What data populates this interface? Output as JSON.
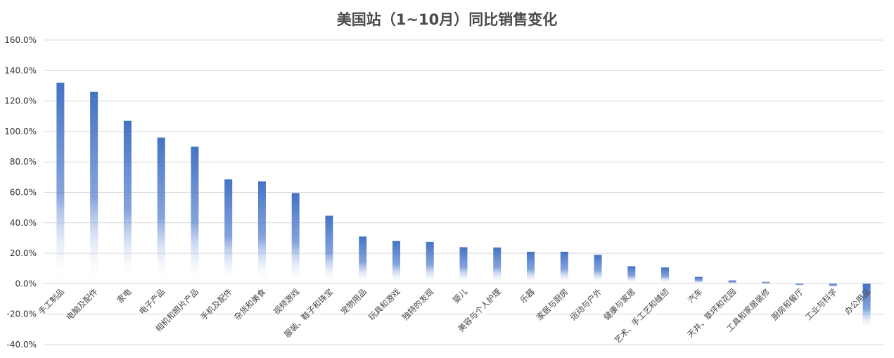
{
  "chart_data": {
    "type": "bar",
    "title": "美国站（1~10月）同比销售变化",
    "xlabel": "",
    "ylabel": "",
    "ylim": [
      -0.4,
      1.6
    ],
    "yticks": [
      "-40.0%",
      "-20.0%",
      "0.0%",
      "20.0%",
      "40.0%",
      "60.0%",
      "80.0%",
      "100.0%",
      "120.0%",
      "140.0%",
      "160.0%"
    ],
    "ytick_values": [
      -0.4,
      -0.2,
      0,
      0.2,
      0.4,
      0.6,
      0.8,
      1.0,
      1.2,
      1.4,
      1.6
    ],
    "grid": true,
    "legend": "none",
    "bar_color": "#4472c4",
    "categories": [
      "手工制品",
      "电脑及配件",
      "家电",
      "电子产品",
      "相机和照片产品",
      "手机及配件",
      "杂货和美食",
      "视频游戏",
      "服装、鞋子和珠宝",
      "宠物用品",
      "玩具和游戏",
      "独特的发现",
      "婴儿",
      "美容与个人护理",
      "乐器",
      "家居与厨房",
      "运动与户外",
      "健康与家居",
      "艺术、手工艺和缝纫",
      "汽车",
      "天井、草坪和花园",
      "工具和家居装修",
      "厨房和餐厅",
      "工业与科学",
      "办公用品"
    ],
    "values": [
      1.32,
      1.26,
      1.07,
      0.96,
      0.9,
      0.685,
      0.672,
      0.595,
      0.447,
      0.31,
      0.28,
      0.275,
      0.24,
      0.238,
      0.21,
      0.21,
      0.19,
      0.115,
      0.107,
      0.045,
      0.022,
      0.012,
      -0.012,
      -0.022,
      -0.3
    ]
  }
}
